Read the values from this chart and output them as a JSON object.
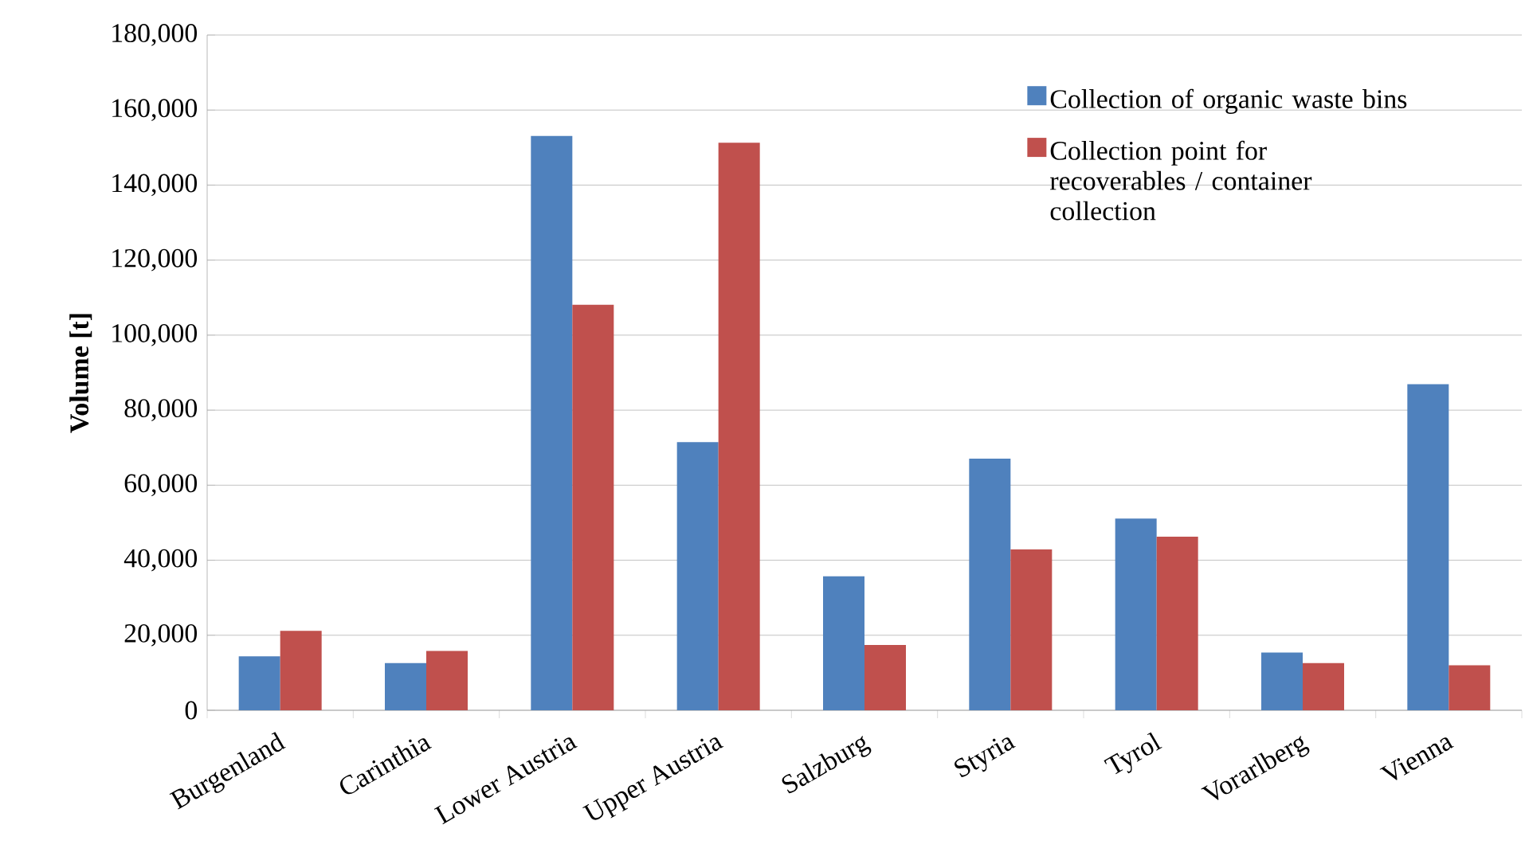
{
  "chart_data": {
    "type": "bar",
    "ylabel": "Volume [t]",
    "categories": [
      "Burgenland",
      "Carinthia",
      "Lower Austria",
      "Upper Austria",
      "Salzburg",
      "Styria",
      "Tyrol",
      "Vorarlberg",
      "Vienna"
    ],
    "series": [
      {
        "name": "Collection of organic waste bins",
        "color": "#4f81bd",
        "values": [
          14400,
          12600,
          153100,
          71500,
          35700,
          67100,
          51100,
          15400,
          86900
        ]
      },
      {
        "name": "Collection point for recoverables / container collection",
        "color": "#c0504d",
        "values": [
          21200,
          15800,
          108100,
          151300,
          17400,
          42900,
          46300,
          12600,
          12000
        ]
      }
    ],
    "ylim": [
      0,
      180000
    ],
    "yticks": [
      0,
      {
        "value": 20000,
        "label": "20,000"
      },
      {
        "value": 40000,
        "label": "40,000"
      },
      {
        "value": 60000,
        "label": "60,000"
      },
      {
        "value": 80000,
        "label": "80,000"
      },
      {
        "value": 100000,
        "label": "100,000"
      },
      {
        "value": 120000,
        "label": "120,000"
      },
      {
        "value": 140000,
        "label": "140,000"
      },
      {
        "value": 160000,
        "label": "160,000"
      },
      {
        "value": 180000,
        "label": "180,000"
      }
    ],
    "grid": "y",
    "legend": "top right"
  }
}
